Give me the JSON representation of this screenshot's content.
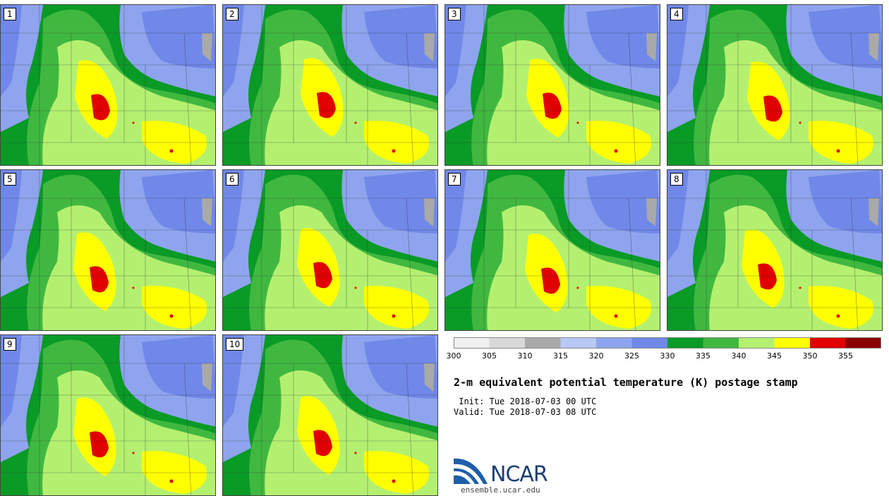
{
  "panels": [
    "1",
    "2",
    "3",
    "4",
    "5",
    "6",
    "7",
    "8",
    "9",
    "10"
  ],
  "colorbar": {
    "ticks": [
      "300",
      "305",
      "310",
      "315",
      "320",
      "325",
      "330",
      "335",
      "340",
      "345",
      "350",
      "355"
    ],
    "colors": [
      "#f0f0f0",
      "#d9d9d9",
      "#a9a9a9",
      "#b8c8f5",
      "#8ea4ee",
      "#7088e8",
      "#0a9a26",
      "#40b840",
      "#b4f070",
      "#ffff00",
      "#e00000",
      "#8b0000"
    ]
  },
  "title": "2-m equivalent potential temperature (K) postage stamp",
  "init": " Init: Tue 2018-07-03 00 UTC",
  "valid": "Valid: Tue 2018-07-03 08 UTC",
  "logo": {
    "text": "NCAR",
    "url": "ensemble.ucar.edu"
  }
}
